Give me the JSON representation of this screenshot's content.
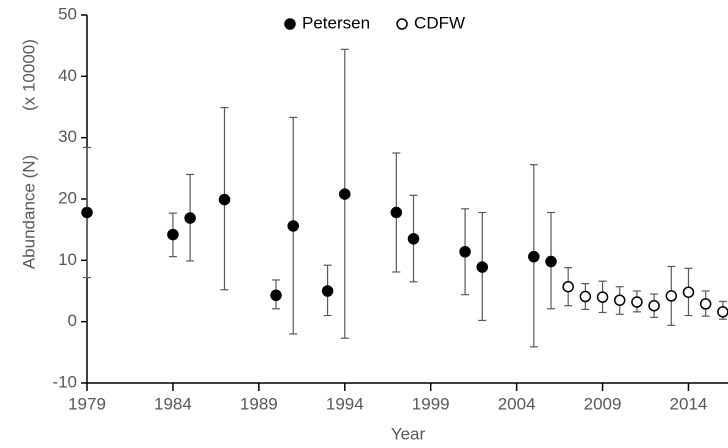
{
  "chart_data": {
    "type": "errorbar",
    "x_label": "Year",
    "y_label": "Abundance (N)",
    "y_label_unit": "(x 10000)",
    "xlim": [
      1979,
      2016.3
    ],
    "xticks": [
      1979,
      1984,
      1989,
      1994,
      1999,
      2004,
      2009,
      2014
    ],
    "ylim": [
      -10,
      50
    ],
    "yticks": [
      -10,
      0,
      10,
      20,
      30,
      40,
      50
    ],
    "legend": "top",
    "series": [
      {
        "name": "Petersen",
        "color": "#000000",
        "fill": "#000000",
        "x": [
          1979,
          1984,
          1985,
          1987,
          1990,
          1991,
          1993,
          1994,
          1997,
          1998,
          2001,
          2002,
          2005,
          2006
        ],
        "values": [
          17.8,
          14.2,
          16.9,
          19.9,
          4.3,
          15.6,
          5.0,
          20.8,
          17.8,
          13.5,
          11.4,
          8.9,
          10.6,
          9.8
        ],
        "low": [
          7.2,
          10.6,
          9.9,
          5.2,
          2.1,
          -2.0,
          1.0,
          -2.7,
          8.1,
          6.5,
          4.4,
          0.2,
          -4.1,
          2.1
        ],
        "high": [
          28.4,
          17.7,
          24.0,
          34.9,
          6.8,
          33.3,
          9.2,
          44.4,
          27.5,
          20.6,
          18.4,
          17.8,
          25.6,
          17.8
        ]
      },
      {
        "name": "CDFW",
        "color": "#000000",
        "fill": "#ffffff",
        "x": [
          2007,
          2008,
          2009,
          2010,
          2011,
          2012,
          2013,
          2014,
          2015,
          2016
        ],
        "values": [
          5.7,
          4.1,
          4.0,
          3.5,
          3.2,
          2.6,
          4.2,
          4.8,
          2.9,
          1.6
        ],
        "low": [
          2.6,
          2.0,
          1.5,
          1.2,
          1.6,
          0.7,
          -0.6,
          1.0,
          0.9,
          0.4
        ],
        "high": [
          8.8,
          6.2,
          6.6,
          5.7,
          5.0,
          4.5,
          9.0,
          8.7,
          5.0,
          3.3
        ]
      }
    ]
  }
}
